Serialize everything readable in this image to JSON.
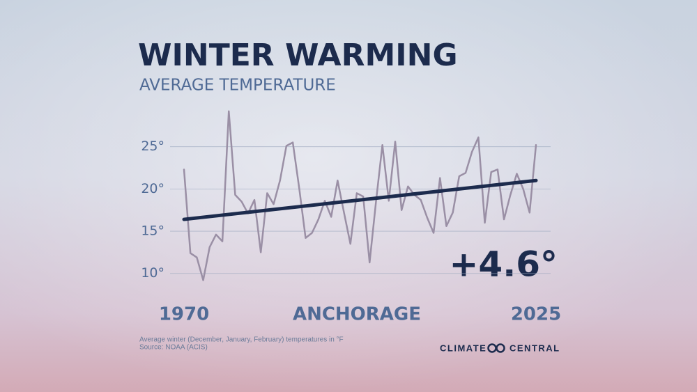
{
  "chart_data": {
    "type": "line",
    "title": "WINTER WARMING",
    "subtitle": "AVERAGE TEMPERATURE",
    "location": "ANCHORAGE",
    "annotation": "+4.6°",
    "x": [
      1970,
      1971,
      1972,
      1973,
      1974,
      1975,
      1976,
      1977,
      1978,
      1979,
      1980,
      1981,
      1982,
      1983,
      1984,
      1985,
      1986,
      1987,
      1988,
      1989,
      1990,
      1991,
      1992,
      1993,
      1994,
      1995,
      1996,
      1997,
      1998,
      1999,
      2000,
      2001,
      2002,
      2003,
      2004,
      2005,
      2006,
      2007,
      2008,
      2009,
      2010,
      2011,
      2012,
      2013,
      2014,
      2015,
      2016,
      2017,
      2018,
      2019,
      2020,
      2021,
      2022,
      2023,
      2024,
      2025
    ],
    "series": [
      {
        "color": "#9a8fa5",
        "values": [
          22.3,
          12.4,
          11.9,
          9.2,
          13.1,
          14.6,
          13.8,
          29.2,
          19.3,
          18.5,
          17.1,
          18.7,
          12.5,
          19.5,
          18.2,
          21.0,
          25.1,
          25.5,
          20.1,
          14.2,
          14.8,
          16.4,
          18.6,
          16.7,
          21.0,
          17.2,
          13.5,
          19.5,
          19.1,
          11.3,
          18.5,
          25.2,
          18.6,
          25.6,
          17.5,
          20.3,
          19.3,
          18.7,
          16.6,
          14.8,
          21.3,
          15.6,
          17.2,
          21.5,
          21.9,
          24.4,
          26.1,
          16.0,
          22.0,
          22.3,
          16.4,
          19.3,
          21.8,
          20.0,
          17.2,
          25.2
        ]
      }
    ],
    "trend_line": {
      "color": "#1c2b4d",
      "x": [
        1970,
        2025
      ],
      "values": [
        16.4,
        21.0
      ]
    },
    "xlim": [
      1970,
      2025
    ],
    "xticks": [
      1970,
      2025
    ],
    "ylim": [
      8,
      30
    ],
    "yticks": [
      {
        "value": 10,
        "label": "10°"
      },
      {
        "value": 15,
        "label": "15°"
      },
      {
        "value": 20,
        "label": "20°"
      },
      {
        "value": 25,
        "label": "25°"
      }
    ],
    "grid": true,
    "note": "Average winter (December, January, February) temperatures in °F",
    "source": "Source: NOAA (ACIS)",
    "brand": [
      "CLIMATE",
      "CENTRAL"
    ]
  }
}
